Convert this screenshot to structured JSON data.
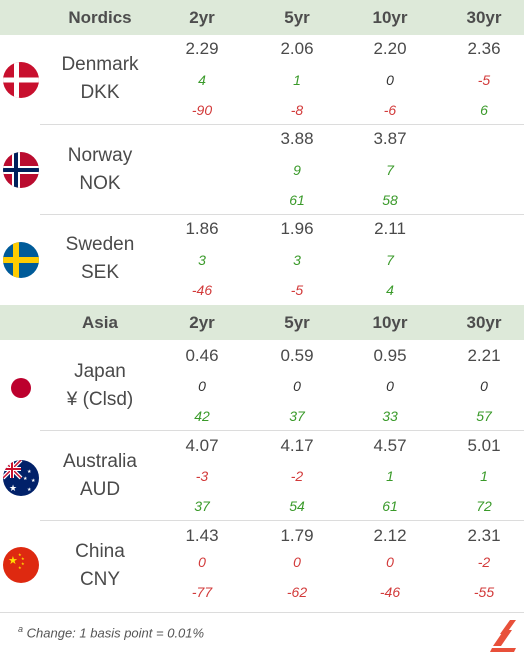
{
  "sections": [
    {
      "title": "Nordics",
      "columns": [
        "2yr",
        "5yr",
        "10yr",
        "30yr"
      ],
      "rows": [
        {
          "country": "Denmark",
          "currency": "DKK",
          "flag": "denmark-flag",
          "values": [
            "2.29",
            "2.06",
            "2.20",
            "2.36"
          ],
          "change1": [
            "4",
            "1",
            "0",
            "-5"
          ],
          "change2": [
            "-90",
            "-8",
            "-6",
            "6"
          ]
        },
        {
          "country": "Norway",
          "currency": "NOK",
          "flag": "norway-flag",
          "values": [
            "",
            "3.88",
            "3.87",
            ""
          ],
          "change1": [
            "",
            "9",
            "7",
            ""
          ],
          "change2": [
            "",
            "61",
            "58",
            ""
          ]
        },
        {
          "country": "Sweden",
          "currency": "SEK",
          "flag": "sweden-flag",
          "values": [
            "1.86",
            "1.96",
            "2.11",
            ""
          ],
          "change1": [
            "3",
            "3",
            "7",
            ""
          ],
          "change2": [
            "-46",
            "-5",
            "4",
            ""
          ]
        }
      ]
    },
    {
      "title": "Asia",
      "columns": [
        "2yr",
        "5yr",
        "10yr",
        "30yr"
      ],
      "rows": [
        {
          "country": "Japan",
          "currency": "¥ (Clsd)",
          "flag": "japan-flag",
          "values": [
            "0.46",
            "0.59",
            "0.95",
            "2.21"
          ],
          "change1": [
            "0",
            "0",
            "0",
            "0"
          ],
          "change2": [
            "42",
            "37",
            "33",
            "57"
          ]
        },
        {
          "country": "Australia",
          "currency": "AUD",
          "flag": "australia-flag",
          "values": [
            "4.07",
            "4.17",
            "4.57",
            "5.01"
          ],
          "change1": [
            "-3",
            "-2",
            "1",
            "1"
          ],
          "change2": [
            "37",
            "54",
            "61",
            "72"
          ]
        },
        {
          "country": "China",
          "currency": "CNY",
          "flag": "china-flag",
          "values": [
            "1.43",
            "1.79",
            "2.12",
            "2.31"
          ],
          "change1": [
            "0",
            "0",
            "0",
            "-2"
          ],
          "change2": [
            "-77",
            "-62",
            "-46",
            "-55"
          ]
        }
      ]
    }
  ],
  "footnote": {
    "marker": "a",
    "text": "Change: 1 basis point = 0.01%"
  },
  "colors": {
    "positive": "#3a9a2a",
    "negative": "#d23a3a",
    "header_bg": "#dde9d9"
  },
  "logo": "publisher-logo"
}
